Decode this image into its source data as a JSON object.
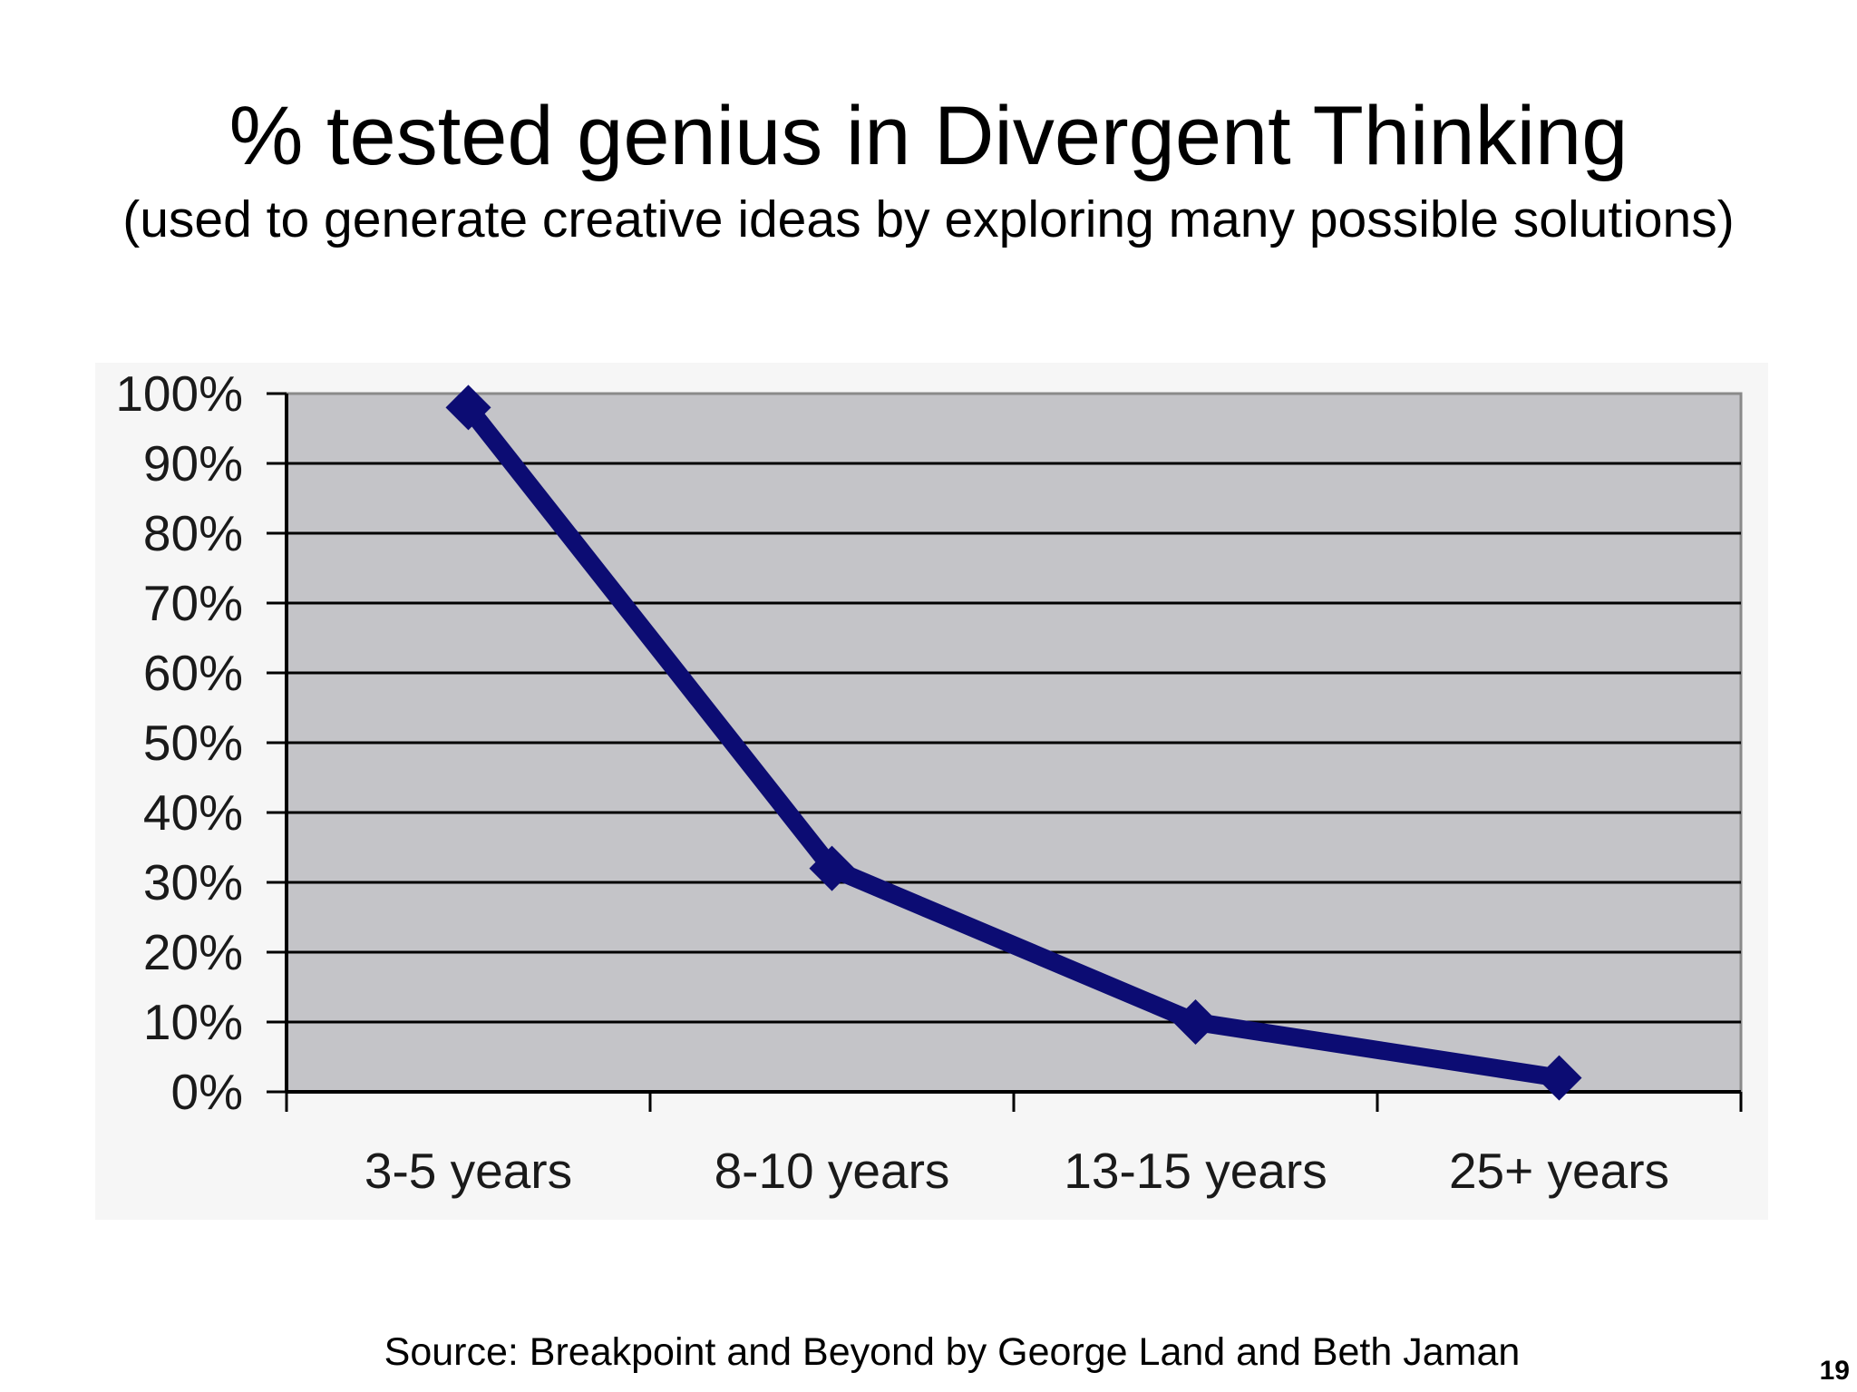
{
  "slide": {
    "title": "% tested genius in Divergent Thinking",
    "subtitle": "(used to generate creative ideas by exploring many possible solutions)",
    "source": "Source: Breakpoint and Beyond by George Land and Beth Jaman",
    "page_number": "19"
  },
  "chart_data": {
    "type": "line",
    "categories": [
      "3-5 years",
      "8-10 years",
      "13-15 years",
      "25+ years"
    ],
    "series": [
      {
        "values": [
          98,
          32,
          10,
          2
        ]
      }
    ],
    "y_tick_labels": [
      "0%",
      "10%",
      "20%",
      "30%",
      "40%",
      "50%",
      "60%",
      "70%",
      "80%",
      "90%",
      "100%"
    ],
    "ylim": [
      0,
      100
    ],
    "y_step": 10,
    "grid": true,
    "legend": "none",
    "colors": {
      "line": "#0c0c73",
      "plot_background": "#c4c4c8",
      "gridline": "#000000"
    },
    "marker": "diamond"
  }
}
